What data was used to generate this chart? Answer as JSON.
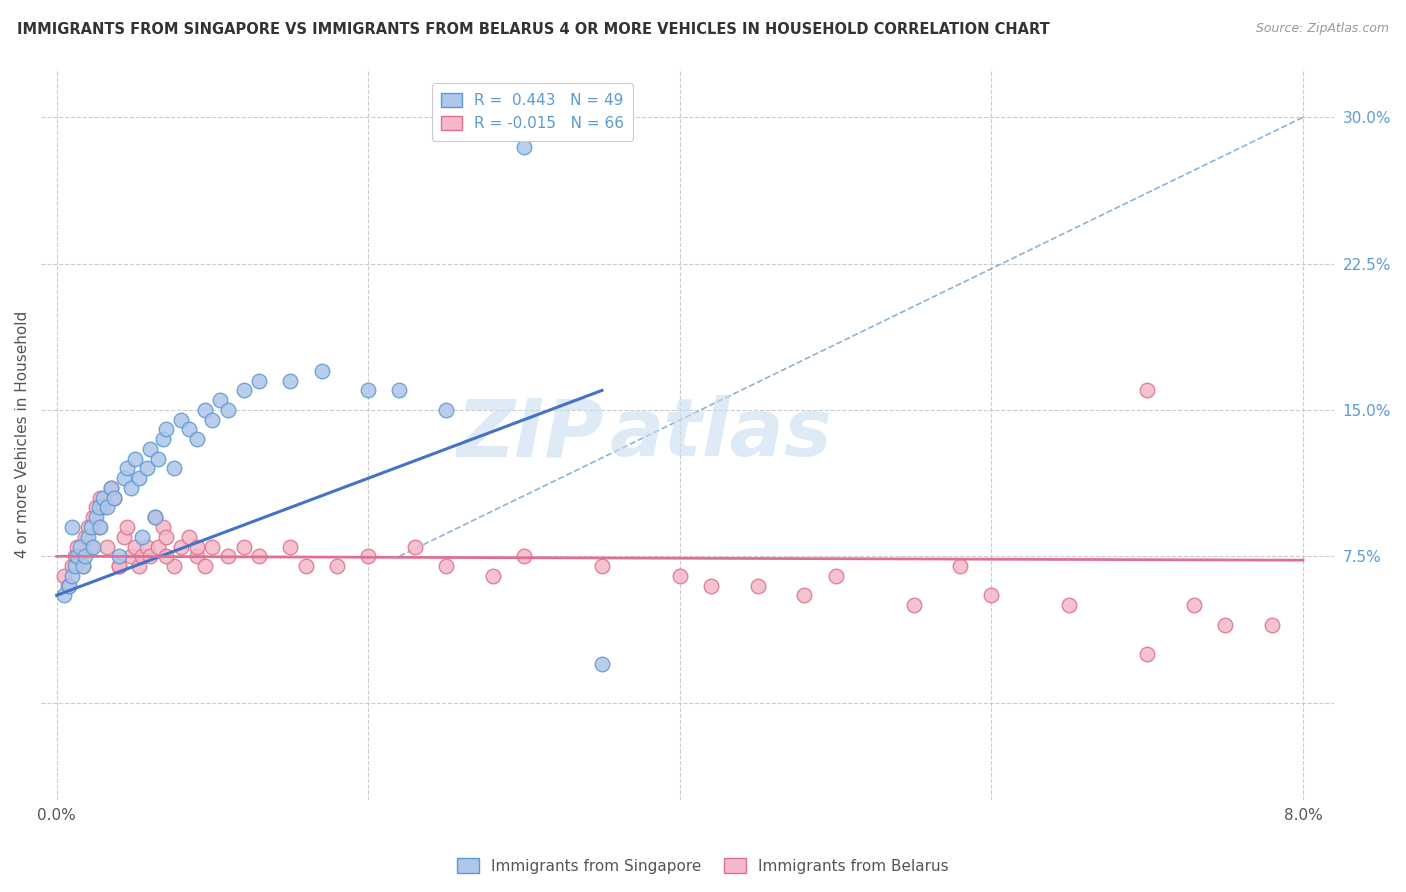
{
  "title": "IMMIGRANTS FROM SINGAPORE VS IMMIGRANTS FROM BELARUS 4 OR MORE VEHICLES IN HOUSEHOLD CORRELATION CHART",
  "source": "Source: ZipAtlas.com",
  "ylabel": "4 or more Vehicles in Household",
  "xlim_data": [
    0.0,
    8.0
  ],
  "ylim_data": [
    0.0,
    30.0
  ],
  "singapore_R": 0.443,
  "singapore_N": 49,
  "belarus_R": -0.015,
  "belarus_N": 66,
  "singapore_color": "#aec6e8",
  "singapore_edge_color": "#5b9bd5",
  "singapore_line_color": "#4472c4",
  "belarus_color": "#f4b8c8",
  "belarus_edge_color": "#e07090",
  "belarus_line_color": "#e07090",
  "dash_line_color": "#8ab4d8",
  "grid_color": "#cccccc",
  "singapore_x": [
    0.05,
    0.08,
    0.1,
    0.12,
    0.13,
    0.15,
    0.17,
    0.18,
    0.2,
    0.22,
    0.23,
    0.25,
    0.27,
    0.28,
    0.3,
    0.32,
    0.35,
    0.37,
    0.4,
    0.43,
    0.45,
    0.48,
    0.5,
    0.53,
    0.55,
    0.58,
    0.6,
    0.63,
    0.65,
    0.68,
    0.7,
    0.75,
    0.8,
    0.85,
    0.9,
    0.95,
    1.0,
    1.05,
    1.1,
    1.2,
    1.3,
    1.5,
    1.7,
    2.0,
    2.2,
    2.5,
    3.0,
    3.5,
    0.1
  ],
  "singapore_y": [
    5.5,
    6.0,
    6.5,
    7.0,
    7.5,
    8.0,
    7.0,
    7.5,
    8.5,
    9.0,
    8.0,
    9.5,
    10.0,
    9.0,
    10.5,
    10.0,
    11.0,
    10.5,
    7.5,
    11.5,
    12.0,
    11.0,
    12.5,
    11.5,
    8.5,
    12.0,
    13.0,
    9.5,
    12.5,
    13.5,
    14.0,
    12.0,
    14.5,
    14.0,
    13.5,
    15.0,
    14.5,
    15.5,
    15.0,
    16.0,
    16.5,
    16.5,
    17.0,
    16.0,
    16.0,
    15.0,
    28.5,
    2.0,
    9.0
  ],
  "belarus_x": [
    0.05,
    0.07,
    0.1,
    0.12,
    0.13,
    0.15,
    0.17,
    0.18,
    0.2,
    0.22,
    0.23,
    0.25,
    0.27,
    0.28,
    0.3,
    0.32,
    0.35,
    0.37,
    0.4,
    0.43,
    0.45,
    0.48,
    0.5,
    0.53,
    0.55,
    0.58,
    0.6,
    0.63,
    0.65,
    0.68,
    0.7,
    0.75,
    0.8,
    0.85,
    0.9,
    0.95,
    1.0,
    1.1,
    1.2,
    1.3,
    1.5,
    1.8,
    2.0,
    2.3,
    2.5,
    3.0,
    3.5,
    4.0,
    4.5,
    4.8,
    5.0,
    5.5,
    5.8,
    6.0,
    6.5,
    7.0,
    7.5,
    0.4,
    0.7,
    0.9,
    1.6,
    2.8,
    4.2,
    7.0,
    7.3,
    7.8
  ],
  "belarus_y": [
    6.5,
    6.0,
    7.0,
    7.5,
    8.0,
    7.5,
    7.0,
    8.5,
    9.0,
    8.0,
    9.5,
    10.0,
    9.0,
    10.5,
    10.0,
    8.0,
    11.0,
    10.5,
    7.0,
    8.5,
    9.0,
    7.5,
    8.0,
    7.0,
    7.5,
    8.0,
    7.5,
    9.5,
    8.0,
    9.0,
    8.5,
    7.0,
    8.0,
    8.5,
    7.5,
    7.0,
    8.0,
    7.5,
    8.0,
    7.5,
    8.0,
    7.0,
    7.5,
    8.0,
    7.0,
    7.5,
    7.0,
    6.5,
    6.0,
    5.5,
    6.5,
    5.0,
    7.0,
    5.5,
    5.0,
    2.5,
    4.0,
    7.0,
    7.5,
    8.0,
    7.0,
    6.5,
    6.0,
    16.0,
    5.0,
    4.0
  ],
  "sg_line_x0": 0.0,
  "sg_line_x1": 3.5,
  "sg_line_y0": 5.5,
  "sg_line_y1": 16.0,
  "by_line_x0": 0.0,
  "by_line_x1": 8.0,
  "by_line_y0": 7.5,
  "by_line_y1": 7.3,
  "dash_x0": 2.2,
  "dash_y0": 7.5,
  "dash_x1": 8.0,
  "dash_y1": 30.0
}
